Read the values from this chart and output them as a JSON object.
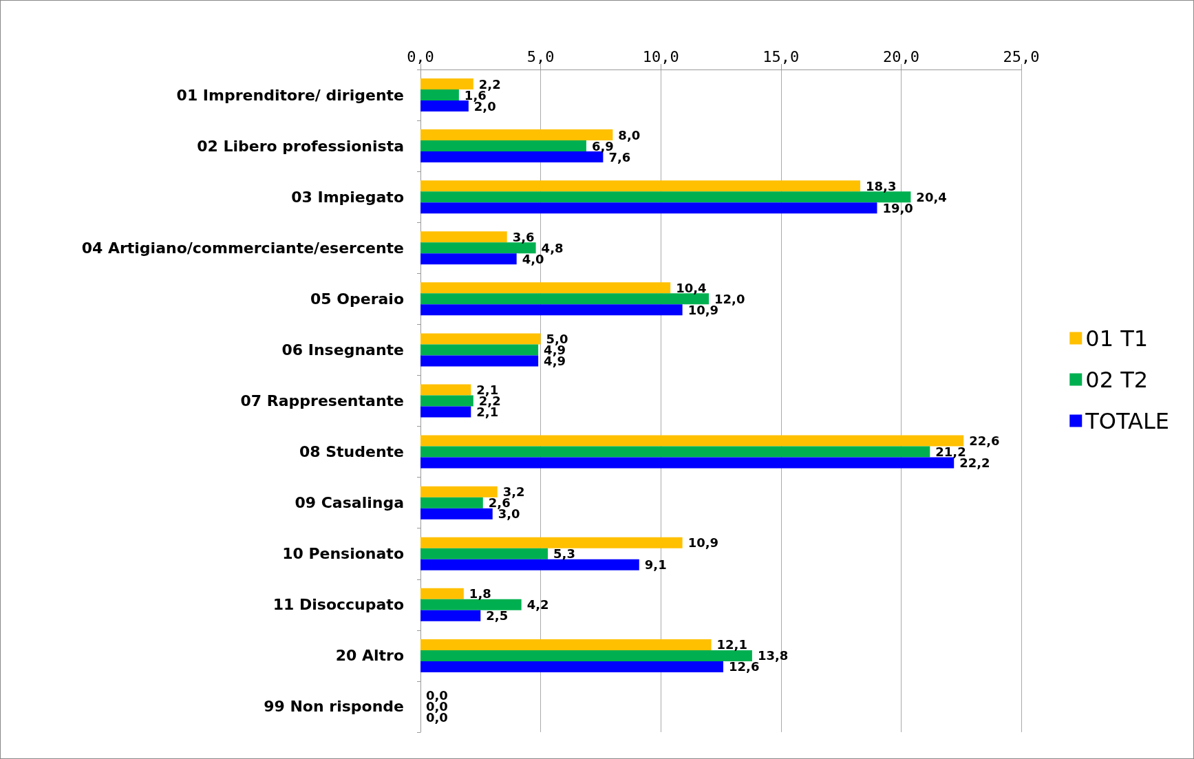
{
  "chart_data": {
    "type": "bar",
    "orientation": "horizontal",
    "categories": [
      "01 Imprenditore/ dirigente",
      "02 Libero professionista",
      "03 Impiegato",
      "04 Artigiano/commerciante/esercente",
      "05 Operaio",
      "06 Insegnante",
      "07 Rappresentante",
      "08 Studente",
      "09 Casalinga",
      "10 Pensionato",
      "11 Disoccupato",
      "20 Altro",
      "99 Non risponde"
    ],
    "series": [
      {
        "name": "01 T1",
        "color": "#ffc000",
        "values": [
          2.2,
          8.0,
          18.3,
          3.6,
          10.4,
          5.0,
          2.1,
          22.6,
          3.2,
          10.9,
          1.8,
          12.1,
          0.0
        ],
        "value_labels": [
          "2,2",
          "8,0",
          "18,3",
          "3,6",
          "10,4",
          "5,0",
          "2,1",
          "22,6",
          "3,2",
          "10,9",
          "1,8",
          "12,1",
          "0,0"
        ]
      },
      {
        "name": "02 T2",
        "color": "#00b050",
        "values": [
          1.6,
          6.9,
          20.4,
          4.8,
          12.0,
          4.9,
          2.2,
          21.2,
          2.6,
          5.3,
          4.2,
          13.8,
          0.0
        ],
        "value_labels": [
          "1,6",
          "6,9",
          "20,4",
          "4,8",
          "12,0",
          "4,9",
          "2,2",
          "21,2",
          "2,6",
          "5,3",
          "4,2",
          "13,8",
          "0,0"
        ]
      },
      {
        "name": "TOTALE",
        "color": "#0000ff",
        "values": [
          2.0,
          7.6,
          19.0,
          4.0,
          10.9,
          4.9,
          2.1,
          22.2,
          3.0,
          9.1,
          2.5,
          12.6,
          0.0
        ],
        "value_labels": [
          "2,0",
          "7,6",
          "19,0",
          "4,0",
          "10,9",
          "4,9",
          "2,1",
          "22,2",
          "3,0",
          "9,1",
          "2,5",
          "12,6",
          "0,0"
        ]
      }
    ],
    "xlim": [
      0,
      25
    ],
    "xticks": [
      {
        "value": 0,
        "label": "0,0"
      },
      {
        "value": 5,
        "label": "5,0"
      },
      {
        "value": 10,
        "label": "10,0"
      },
      {
        "value": 15,
        "label": "15,0"
      },
      {
        "value": 20,
        "label": "20,0"
      },
      {
        "value": 25,
        "label": "25,0"
      }
    ],
    "grid": "x",
    "legend": "right"
  }
}
